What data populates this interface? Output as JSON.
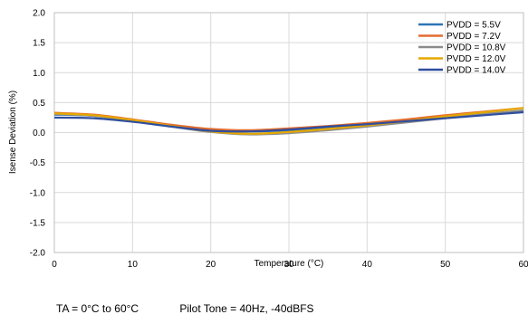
{
  "chart_data": {
    "type": "line",
    "xlabel": "Temperature (°C)",
    "ylabel": "Isense Deviation (%)",
    "xlim": [
      0,
      60
    ],
    "ylim": [
      -2.0,
      2.0
    ],
    "xticks": [
      "0",
      "10",
      "20",
      "30",
      "40",
      "50",
      "60"
    ],
    "yticks": [
      "2.0",
      "1.5",
      "1.0",
      "0.5",
      "0.0",
      "-0.5",
      "-1.0",
      "-1.5",
      "-2.0"
    ],
    "grid": true,
    "legend_position": "top-right",
    "x": [
      0,
      5,
      10,
      15,
      20,
      25,
      30,
      35,
      40,
      45,
      50,
      55,
      60
    ],
    "series": [
      {
        "name": "PVDD = 5.5V",
        "color": "#2e75b6",
        "values": [
          0.3,
          0.28,
          0.2,
          0.11,
          0.04,
          0.02,
          0.04,
          0.09,
          0.14,
          0.2,
          0.26,
          0.31,
          0.36
        ]
      },
      {
        "name": "PVDD = 7.2V",
        "color": "#e36c2e",
        "values": [
          0.33,
          0.3,
          0.22,
          0.13,
          0.06,
          0.04,
          0.07,
          0.11,
          0.16,
          0.22,
          0.29,
          0.35,
          0.41
        ]
      },
      {
        "name": "PVDD = 10.8V",
        "color": "#8c8c8c",
        "values": [
          0.31,
          0.28,
          0.2,
          0.1,
          0.01,
          -0.03,
          -0.01,
          0.04,
          0.1,
          0.17,
          0.24,
          0.31,
          0.37
        ]
      },
      {
        "name": "PVDD = 12.0V",
        "color": "#e5a800",
        "values": [
          0.32,
          0.29,
          0.21,
          0.11,
          0.02,
          -0.02,
          0.01,
          0.06,
          0.12,
          0.19,
          0.27,
          0.34,
          0.41
        ]
      },
      {
        "name": "PVDD = 14.0V",
        "color": "#2f4e9e",
        "values": [
          0.25,
          0.24,
          0.18,
          0.1,
          0.03,
          0.02,
          0.05,
          0.1,
          0.14,
          0.19,
          0.24,
          0.29,
          0.34
        ]
      }
    ]
  },
  "footnote": {
    "ta": "TA = 0°C to 60°C",
    "pilot": "Pilot Tone = 40Hz, -40dBFS"
  }
}
